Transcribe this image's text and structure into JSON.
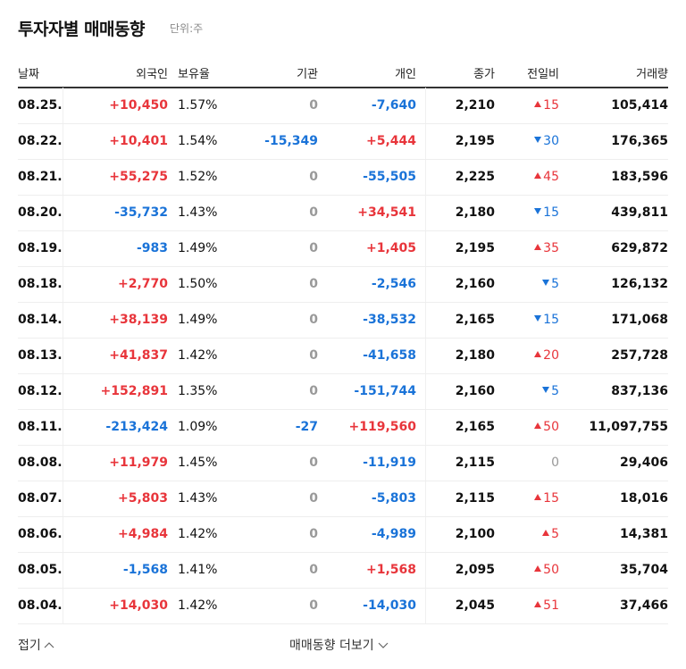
{
  "header": {
    "title": "투자자별 매매동향",
    "unit": "단위:주"
  },
  "table": {
    "columns": [
      "날짜",
      "외국인",
      "보유율",
      "기관",
      "개인",
      "종가",
      "전일비",
      "거래량"
    ],
    "rows": [
      [
        "08.25.",
        "+10,450",
        "1.57%",
        "0",
        "-7,640",
        "2,210",
        {
          "dir": "up",
          "value": "15"
        },
        "105,414"
      ],
      [
        "08.22.",
        "+10,401",
        "1.54%",
        "-15,349",
        "+5,444",
        "2,195",
        {
          "dir": "down",
          "value": "30"
        },
        "176,365"
      ],
      [
        "08.21.",
        "+55,275",
        "1.52%",
        "0",
        "-55,505",
        "2,225",
        {
          "dir": "up",
          "value": "45"
        },
        "183,596"
      ],
      [
        "08.20.",
        "-35,732",
        "1.43%",
        "0",
        "+34,541",
        "2,180",
        {
          "dir": "down",
          "value": "15"
        },
        "439,811"
      ],
      [
        "08.19.",
        "-983",
        "1.49%",
        "0",
        "+1,405",
        "2,195",
        {
          "dir": "up",
          "value": "35"
        },
        "629,872"
      ],
      [
        "08.18.",
        "+2,770",
        "1.50%",
        "0",
        "-2,546",
        "2,160",
        {
          "dir": "down",
          "value": "5"
        },
        "126,132"
      ],
      [
        "08.14.",
        "+38,139",
        "1.49%",
        "0",
        "-38,532",
        "2,165",
        {
          "dir": "down",
          "value": "15"
        },
        "171,068"
      ],
      [
        "08.13.",
        "+41,837",
        "1.42%",
        "0",
        "-41,658",
        "2,180",
        {
          "dir": "up",
          "value": "20"
        },
        "257,728"
      ],
      [
        "08.12.",
        "+152,891",
        "1.35%",
        "0",
        "-151,744",
        "2,160",
        {
          "dir": "down",
          "value": "5"
        },
        "837,136"
      ],
      [
        "08.11.",
        "-213,424",
        "1.09%",
        "-27",
        "+119,560",
        "2,165",
        {
          "dir": "up",
          "value": "50"
        },
        "11,097,755"
      ],
      [
        "08.08.",
        "+11,979",
        "1.45%",
        "0",
        "-11,919",
        "2,115",
        {
          "dir": "flat",
          "value": "0"
        },
        "29,406"
      ],
      [
        "08.07.",
        "+5,803",
        "1.43%",
        "0",
        "-5,803",
        "2,115",
        {
          "dir": "up",
          "value": "15"
        },
        "18,016"
      ],
      [
        "08.06.",
        "+4,984",
        "1.42%",
        "0",
        "-4,989",
        "2,100",
        {
          "dir": "up",
          "value": "5"
        },
        "14,381"
      ],
      [
        "08.05.",
        "-1,568",
        "1.41%",
        "0",
        "+1,568",
        "2,095",
        {
          "dir": "up",
          "value": "50"
        },
        "35,704"
      ],
      [
        "08.04.",
        "+14,030",
        "1.42%",
        "0",
        "-14,030",
        "2,045",
        {
          "dir": "up",
          "value": "51"
        },
        "37,466"
      ]
    ]
  },
  "footer": {
    "collapse": "접기",
    "more": "매매동향 더보기"
  }
}
